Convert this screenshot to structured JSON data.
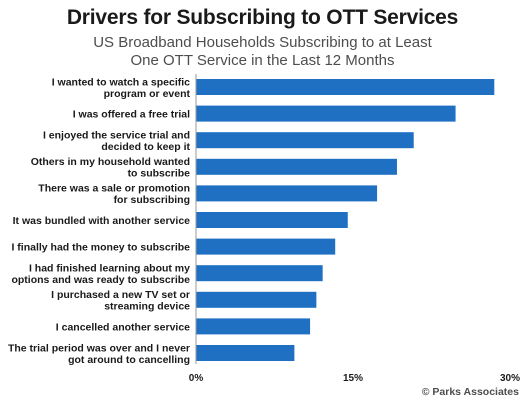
{
  "chart_data": {
    "type": "bar",
    "orientation": "horizontal",
    "title": "Drivers for Subscribing to OTT Services",
    "subtitle": [
      "US Broadband Households Subscribing to at Least",
      "One OTT Service in the Last 12 Months"
    ],
    "categories": [
      [
        "I wanted to watch a specific",
        "program or event"
      ],
      [
        "I was offered a free trial"
      ],
      [
        "I enjoyed the service trial and",
        "decided to keep it"
      ],
      [
        "Others in my household wanted",
        "to subscribe"
      ],
      [
        "There was a sale or promotion",
        "for subscribing"
      ],
      [
        "It was bundled with another service"
      ],
      [
        "I finally had the money to subscribe"
      ],
      [
        "I had finished learning about my",
        "options and was ready to subscribe"
      ],
      [
        "I purchased a new TV set or",
        "streaming device"
      ],
      [
        "I cancelled another service"
      ],
      [
        "The trial period was over and I never",
        "got around to cancelling"
      ]
    ],
    "values": [
      28.5,
      24.8,
      20.8,
      19.2,
      17.3,
      14.5,
      13.3,
      12.1,
      11.5,
      10.9,
      9.4
    ],
    "xlim": [
      0,
      30
    ],
    "xticks": [
      "0%",
      "15%",
      "30%"
    ],
    "xtick_values": [
      0,
      15,
      30
    ],
    "bar_color": "#1f6fc3",
    "grid": false,
    "legend": "none",
    "source": "© Parks Associates"
  }
}
